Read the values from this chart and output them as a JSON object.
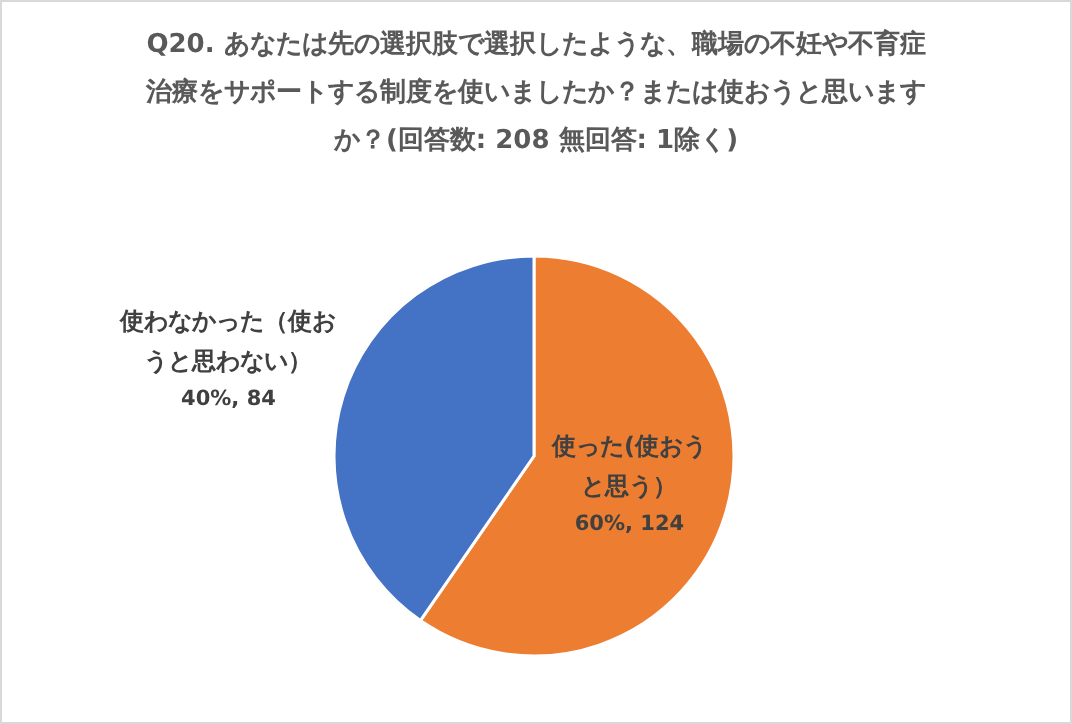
{
  "chart_data": {
    "type": "pie",
    "title": "Q20. あなたは先の選択肢で選択したような、職場の不妊や不育症治療をサポートする制度を使いましたか？または使おうと思いますか？(回答数: 208 無回答: 1除く)",
    "categories": [
      "使った(使おうと思う）",
      "使わなかった（使おうと思わない）"
    ],
    "values": [
      124,
      84
    ],
    "colors": [
      "#ed7d31",
      "#4472c4"
    ],
    "value_labels": [
      "60%, 124",
      "40%, 84"
    ]
  }
}
